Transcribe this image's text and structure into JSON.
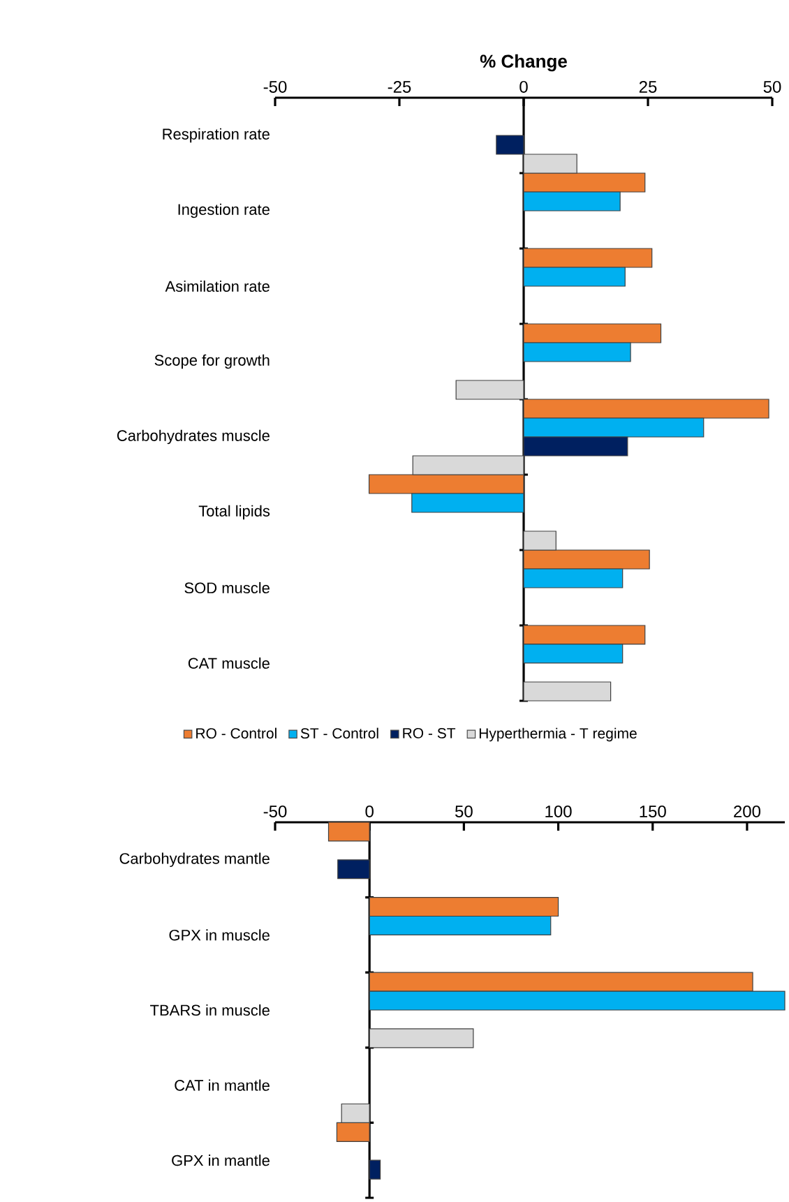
{
  "chart_data": [
    {
      "type": "bar",
      "orientation": "horizontal",
      "xlabel": "% Change",
      "categories": [
        "Respiration rate",
        "Ingestion rate",
        "Asimilation rate",
        "Scope for growth",
        "Carbohydrates muscle",
        "Total lipids",
        "SOD muscle",
        "CAT muscle"
      ],
      "series": [
        {
          "name": "RO - Control",
          "color": "#ed7d31",
          "values": [
            null,
            24.4,
            25.8,
            27.6,
            49.3,
            -31.1,
            25.3,
            24.4
          ]
        },
        {
          "name": "ST - Control",
          "color": "#00b0f0",
          "values": [
            null,
            19.4,
            20.4,
            21.5,
            36.2,
            -22.5,
            19.9,
            19.9
          ]
        },
        {
          "name": "RO - ST",
          "color": "#002060",
          "values": [
            -5.5,
            null,
            null,
            null,
            20.9,
            null,
            null,
            null
          ]
        },
        {
          "name": "Hyperthermia - T regime",
          "color": "#d9d9d9",
          "values": [
            10.7,
            null,
            null,
            -13.6,
            -22.3,
            6.5,
            null,
            17.5
          ]
        }
      ],
      "xlim": [
        -50,
        50
      ],
      "xticks": [
        -50,
        -25,
        0,
        25,
        50
      ],
      "legend": "bottom"
    },
    {
      "type": "bar",
      "orientation": "horizontal",
      "categories": [
        "Carbohydrates mantle",
        "GPX in muscle",
        "TBARS in muscle",
        "CAT in mantle",
        "GPX in mantle"
      ],
      "series": [
        {
          "color": "#ed7d31",
          "values": [
            -21.7,
            100,
            203,
            null,
            -17.3
          ]
        },
        {
          "color": "#00b0f0",
          "values": [
            null,
            96,
            220,
            null,
            null
          ]
        },
        {
          "color": "#002060",
          "values": [
            -16.8,
            null,
            null,
            null,
            5.7
          ]
        },
        {
          "color": "#d9d9d9",
          "values": [
            null,
            null,
            55,
            -14.8,
            null
          ]
        }
      ],
      "xlim": [
        -50,
        220
      ],
      "xticks": [
        -50,
        0,
        50,
        100,
        150,
        200
      ]
    }
  ]
}
